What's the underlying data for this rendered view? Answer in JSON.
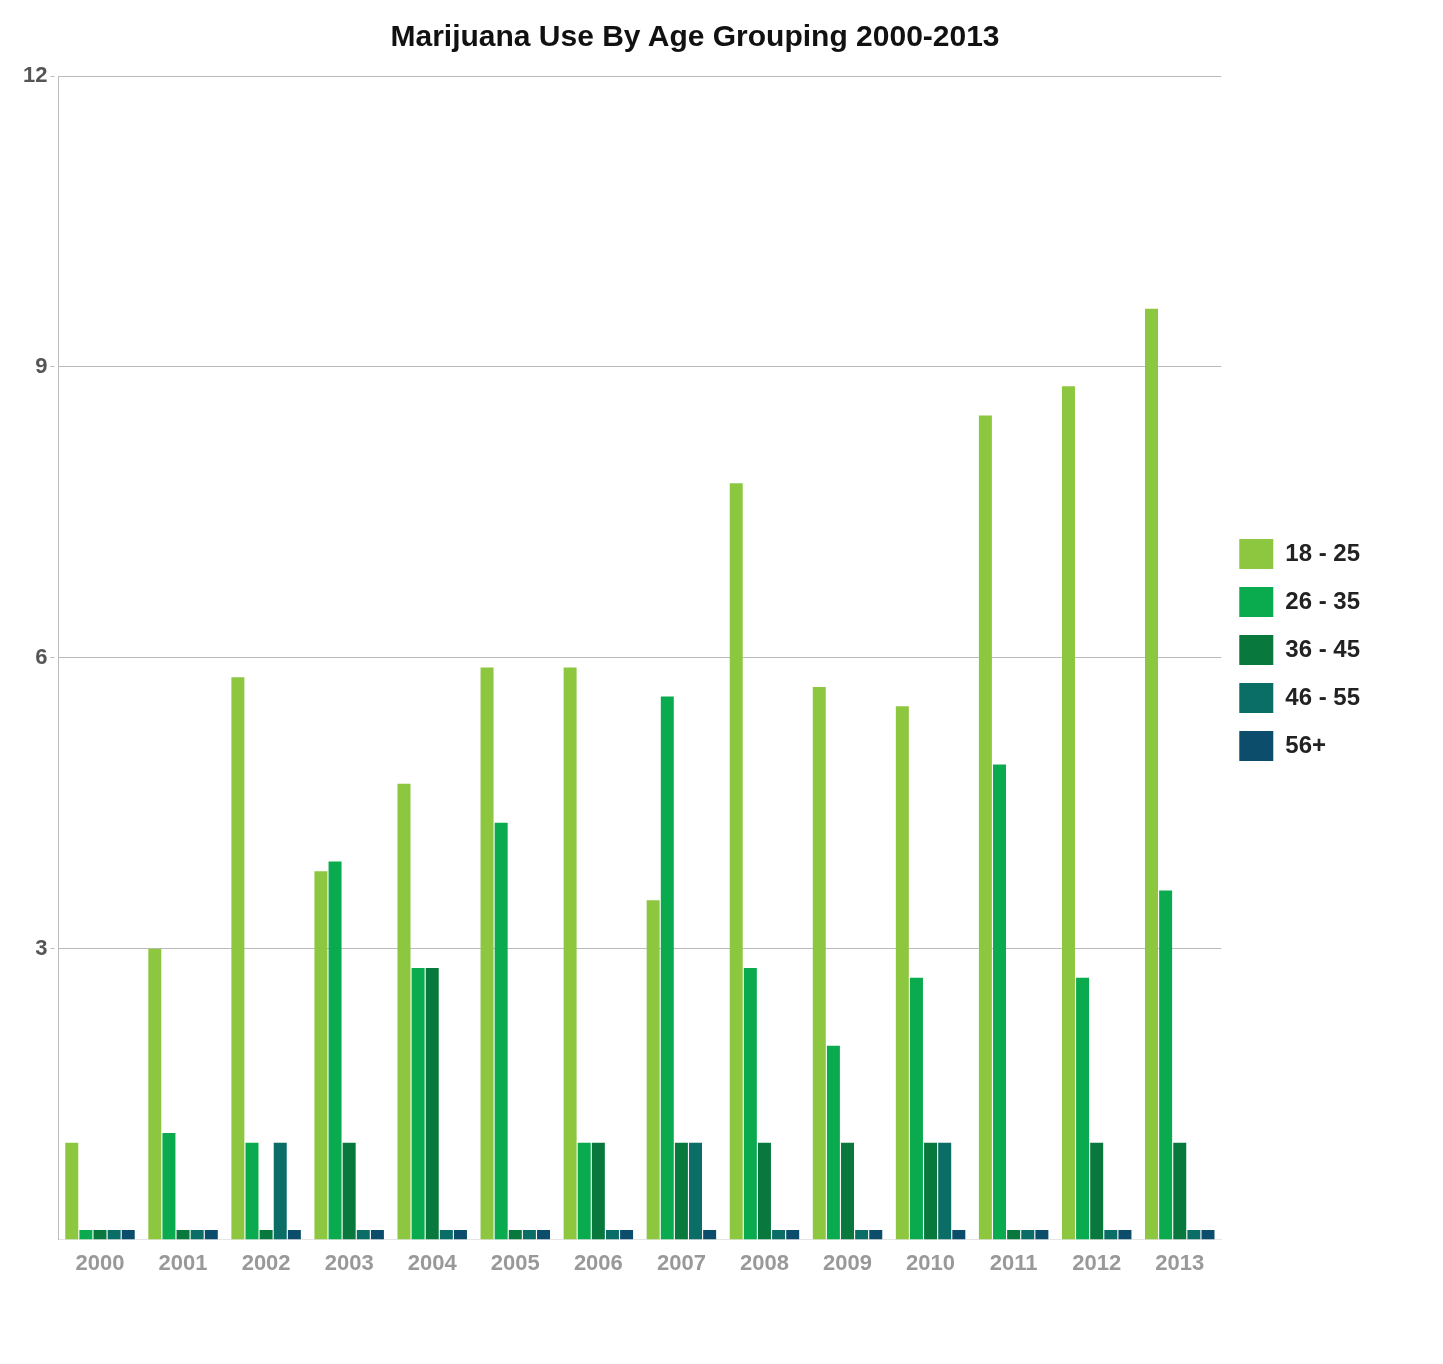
{
  "chart_data": {
    "type": "bar",
    "title": "Marijuana Use By Age Grouping 2000-2013",
    "categories": [
      "2000",
      "2001",
      "2002",
      "2003",
      "2004",
      "2005",
      "2006",
      "2007",
      "2008",
      "2009",
      "2010",
      "2011",
      "2012",
      "2013"
    ],
    "series": [
      {
        "name": "18 - 25",
        "color": "#8dc63f",
        "values": [
          1.0,
          3.0,
          5.8,
          3.8,
          4.7,
          5.9,
          5.9,
          3.5,
          7.8,
          5.7,
          5.5,
          8.5,
          8.8,
          9.6
        ]
      },
      {
        "name": "26 - 35",
        "color": "#0aab4f",
        "values": [
          0.1,
          1.1,
          1.0,
          3.9,
          2.8,
          4.3,
          1.0,
          5.6,
          2.8,
          2.0,
          2.7,
          4.9,
          2.7,
          3.6
        ]
      },
      {
        "name": "36 - 45",
        "color": "#08783d",
        "values": [
          0.1,
          0.1,
          0.1,
          1.0,
          2.8,
          0.1,
          1.0,
          1.0,
          1.0,
          1.0,
          1.0,
          0.1,
          1.0,
          1.0
        ]
      },
      {
        "name": "46 - 55",
        "color": "#0b6e66",
        "values": [
          0.1,
          0.1,
          1.0,
          0.1,
          0.1,
          0.1,
          0.1,
          1.0,
          0.1,
          0.1,
          1.0,
          0.1,
          0.1,
          0.1
        ]
      },
      {
        "name": "56+",
        "color": "#0b4d6b",
        "values": [
          0.1,
          0.1,
          0.1,
          0.1,
          0.1,
          0.1,
          0.1,
          0.1,
          0.1,
          0.1,
          0.1,
          0.1,
          0.1,
          0.1
        ]
      }
    ],
    "ylim": [
      0,
      12
    ],
    "yticks": [
      3,
      6,
      9,
      12
    ],
    "grid": "y",
    "legend": "right"
  }
}
